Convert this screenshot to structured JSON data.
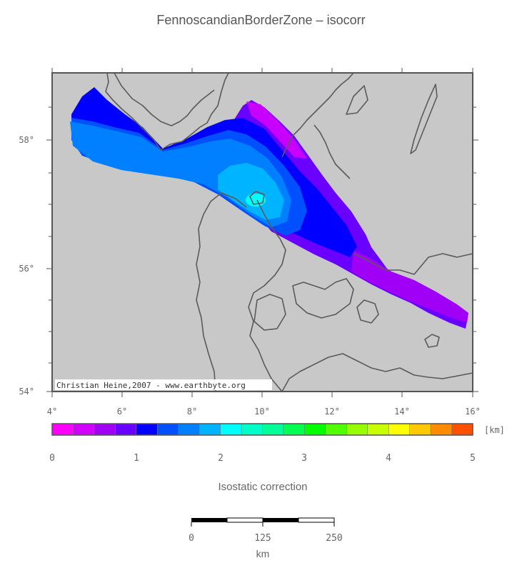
{
  "title": "FennoscandianBorderZone – isocorr",
  "map": {
    "lat_labels": [
      "58°",
      "56°",
      "54°"
    ],
    "lon_labels": [
      "4°",
      "6°",
      "8°",
      "10°",
      "12°",
      "14°",
      "16°"
    ],
    "lon_range": [
      4,
      16
    ],
    "lat_range": [
      54,
      59.1
    ],
    "credit": "Christian Heine,2007 - www.earthbyte.org",
    "colors": {
      "land_sea": "#c8c8c8",
      "coastline": "#5a5a5a"
    }
  },
  "colorbar": {
    "unit": "[km]",
    "ticks": [
      "0",
      "1",
      "2",
      "3",
      "4",
      "5"
    ],
    "range": [
      0,
      5
    ],
    "colors": [
      "#ff00ff",
      "#d200ff",
      "#a000f5",
      "#6a00ff",
      "#0000ff",
      "#0050ff",
      "#0080ff",
      "#00b4ff",
      "#00ffff",
      "#00ffc8",
      "#00ff96",
      "#00ff50",
      "#00ff00",
      "#50ff00",
      "#96ff00",
      "#c8ff00",
      "#ffff00",
      "#ffc800",
      "#ff8c00",
      "#ff5000"
    ],
    "label": "Isostatic correction"
  },
  "scalebar": {
    "ticks": [
      "0",
      "125",
      "250"
    ],
    "unit": "km"
  }
}
